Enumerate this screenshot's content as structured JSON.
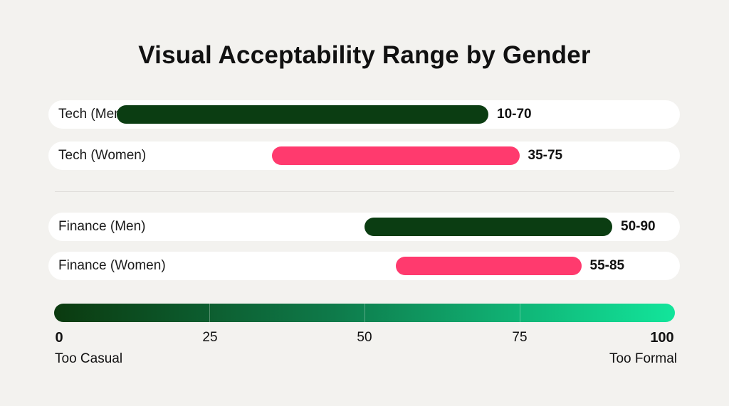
{
  "chart_data": {
    "type": "bar",
    "subtype": "range",
    "title": "Visual Acceptability Range by Gender",
    "categories": [
      "Tech (Men)",
      "Tech (Women)",
      "Finance (Men)",
      "Finance (Women)"
    ],
    "ranges": [
      {
        "category": "Tech (Men)",
        "low": 10,
        "high": 70,
        "label": "10-70",
        "color": "#0b3d12"
      },
      {
        "category": "Tech (Women)",
        "low": 35,
        "high": 75,
        "label": "35-75",
        "color": "#ff3a6e"
      },
      {
        "category": "Finance (Men)",
        "low": 50,
        "high": 90,
        "label": "50-90",
        "color": "#0b3d12"
      },
      {
        "category": "Finance (Women)",
        "low": 55,
        "high": 85,
        "label": "55-85",
        "color": "#ff3a6e"
      }
    ],
    "xlim": [
      0,
      100
    ],
    "ticks": [
      "0",
      "25",
      "50",
      "75",
      "100"
    ],
    "scale_left_label": "Too Casual",
    "scale_right_label": "Too Formal",
    "legend": "none",
    "grid": false
  }
}
